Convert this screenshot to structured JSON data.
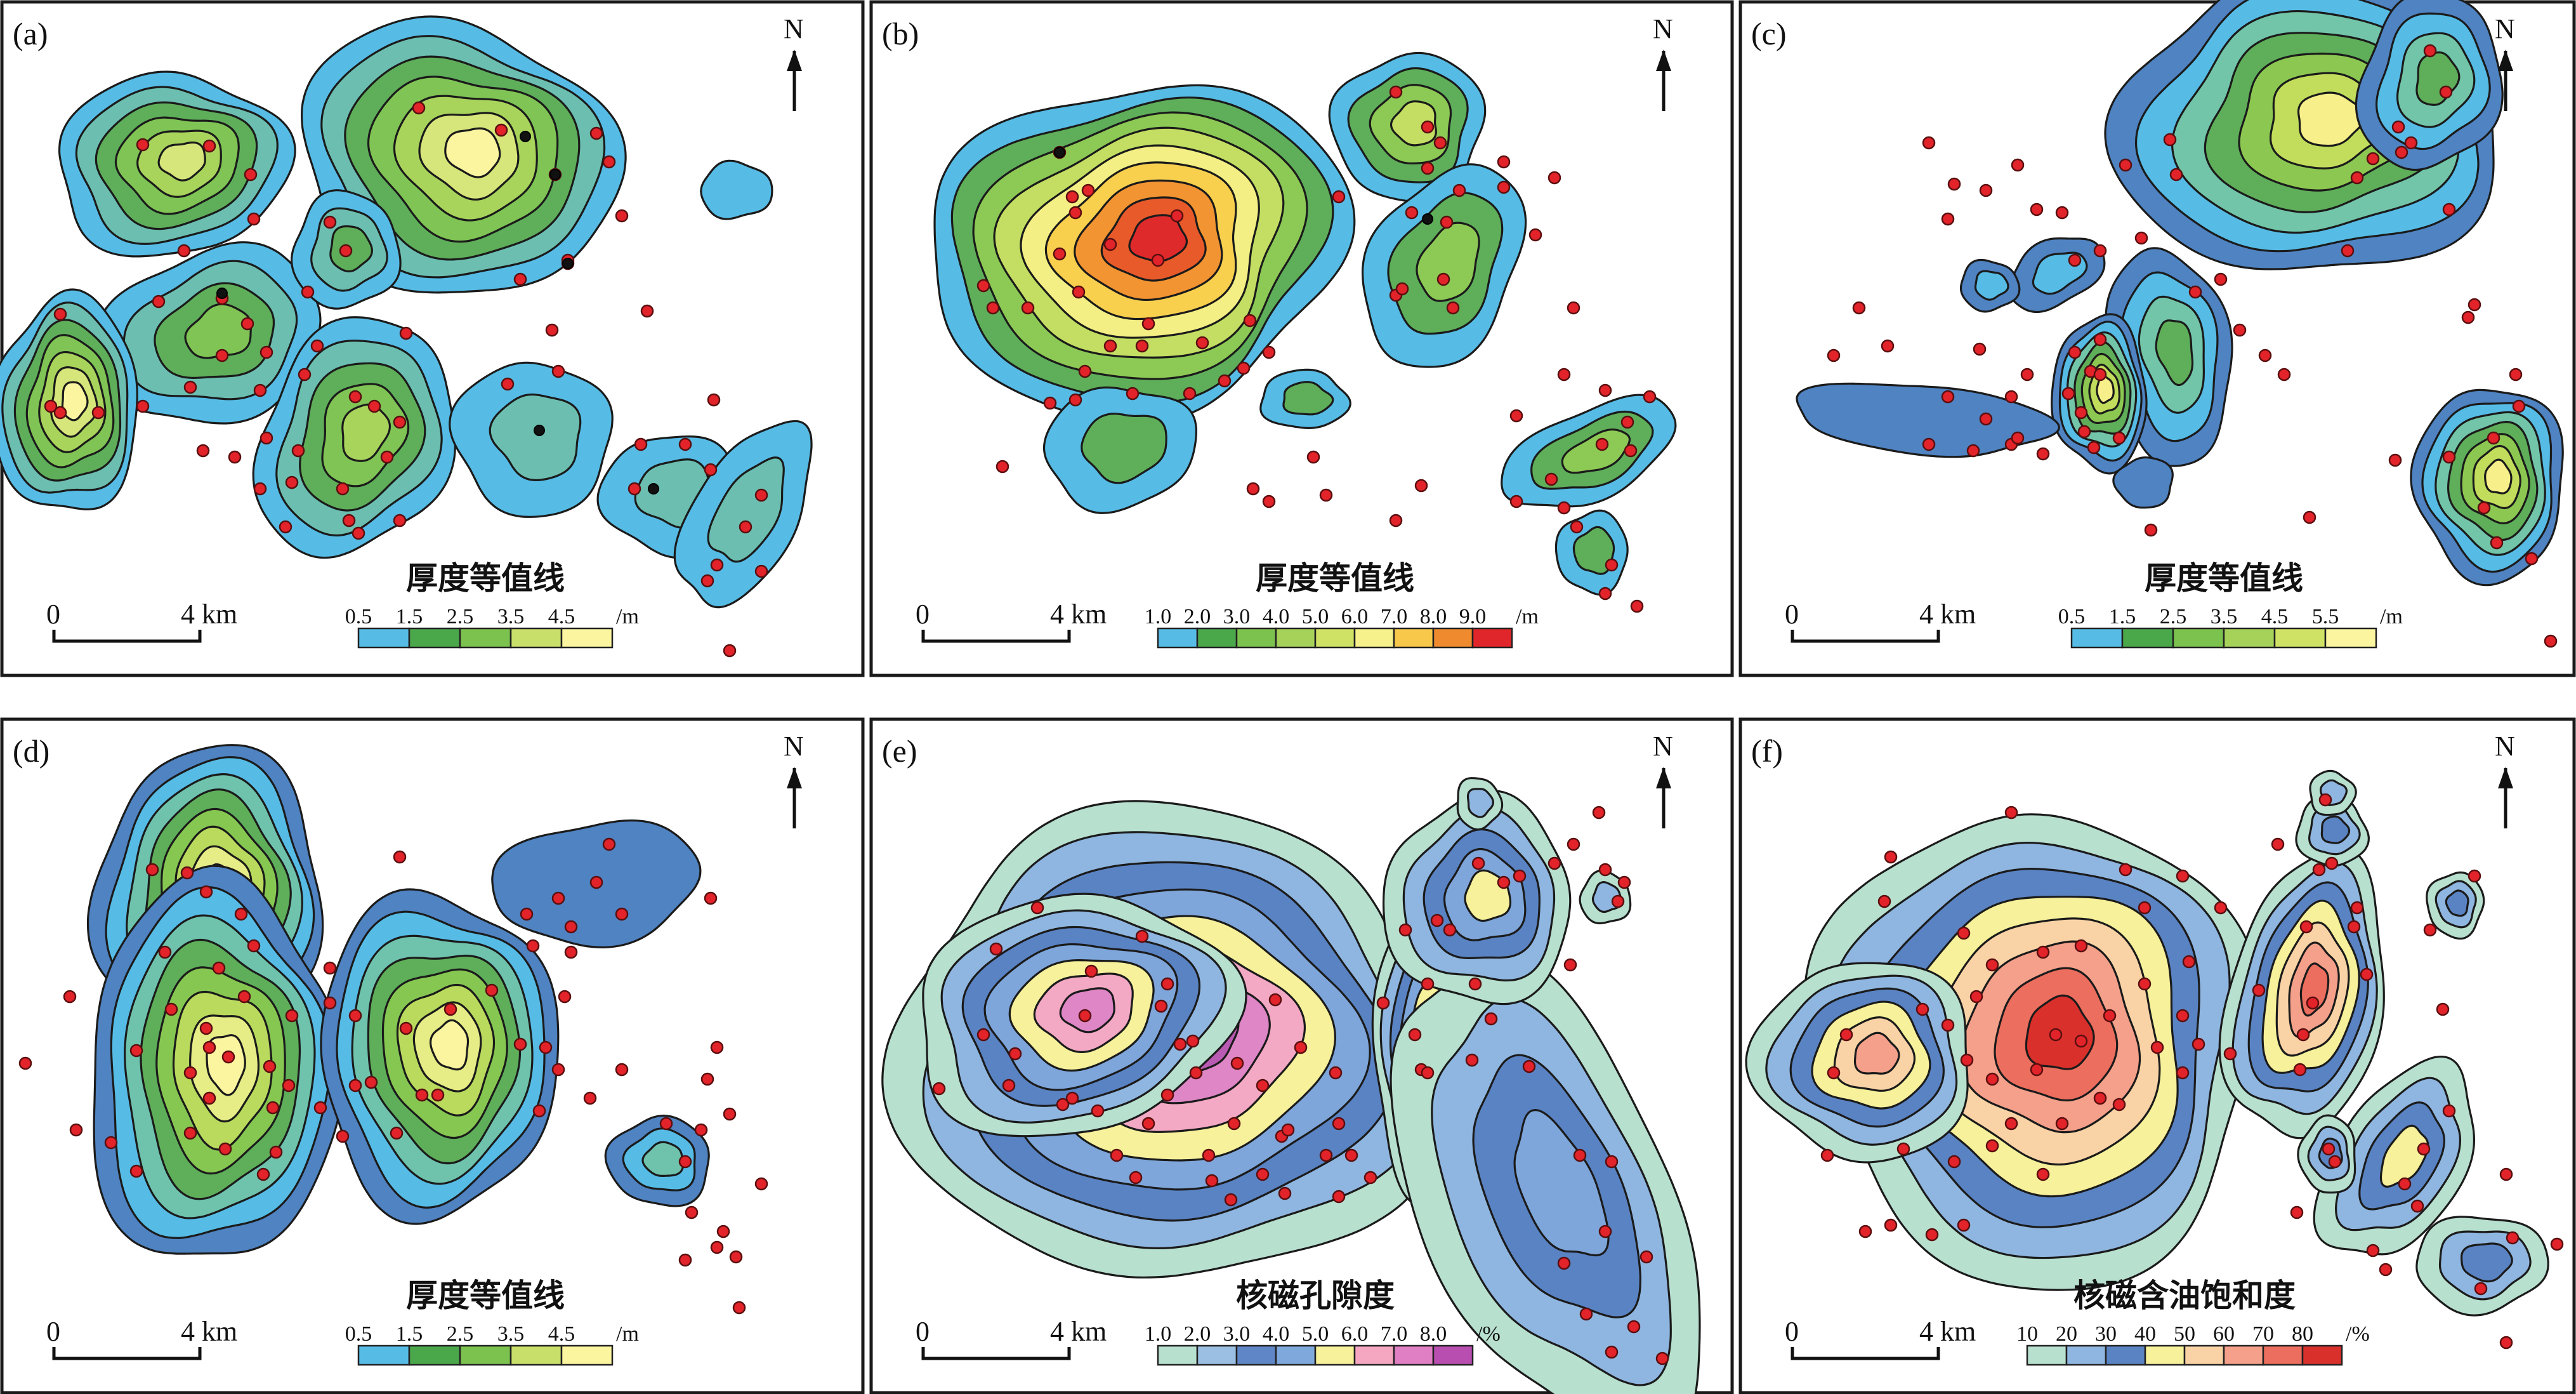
{
  "panels": [
    {
      "id": "a",
      "label": "(a)",
      "north": "N",
      "legend_title": "厚度等值线",
      "legend_ticks": [
        "0.5",
        "1.5",
        "2.5",
        "3.5",
        "4.5"
      ],
      "legend_unit": "/m",
      "legend_colors": [
        "#56bce6",
        "#4aa84a",
        "#7cc24e",
        "#c8df6a",
        "#fbf5a0"
      ],
      "ramp": [
        "#56bce6",
        "#6cbfb0",
        "#5fae5a",
        "#7fc454",
        "#a9d45c",
        "#d7e67a",
        "#fbf5a0"
      ],
      "scale": {
        "zero": "0",
        "distance": "4 km"
      }
    },
    {
      "id": "b",
      "label": "(b)",
      "north": "N",
      "legend_title": "厚度等值线",
      "legend_ticks": [
        "1.0",
        "2.0",
        "3.0",
        "4.0",
        "5.0",
        "6.0",
        "7.0",
        "8.0",
        "9.0"
      ],
      "legend_unit": "/m",
      "legend_colors": [
        "#56bce6",
        "#4aa84a",
        "#7cc24e",
        "#a6d25a",
        "#cfe265",
        "#f6f18a",
        "#f7c84a",
        "#f08a2e",
        "#e0262a"
      ],
      "ramp": [
        "#56bce6",
        "#5fae5a",
        "#8dc955",
        "#c3de62",
        "#f3ef84",
        "#f8d04e",
        "#f29431",
        "#e85a2a",
        "#df2a2c"
      ],
      "scale": {
        "zero": "0",
        "distance": "4 km"
      }
    },
    {
      "id": "c",
      "label": "(c)",
      "north": "N",
      "legend_title": "厚度等值线",
      "legend_ticks": [
        "0.5",
        "1.5",
        "2.5",
        "3.5",
        "4.5",
        "5.5"
      ],
      "legend_unit": "/m",
      "legend_colors": [
        "#56bce6",
        "#4aa84a",
        "#7cc24e",
        "#a6d25a",
        "#cfe265",
        "#fbf5a0"
      ],
      "ramp": [
        "#4f83c2",
        "#56bce6",
        "#72c5a8",
        "#5fae5a",
        "#8cc851",
        "#c2dd5c",
        "#f7f08a"
      ],
      "scale": {
        "zero": "0",
        "distance": "4 km"
      }
    },
    {
      "id": "d",
      "label": "(d)",
      "north": "N",
      "legend_title": "厚度等值线",
      "legend_ticks": [
        "0.5",
        "1.5",
        "2.5",
        "3.5",
        "4.5"
      ],
      "legend_unit": "/m",
      "legend_colors": [
        "#56bce6",
        "#4aa84a",
        "#7cc24e",
        "#c8df6a",
        "#fbf5a0"
      ],
      "ramp": [
        "#4f83c2",
        "#56bce6",
        "#6fc3ad",
        "#5fae5a",
        "#86c752",
        "#b9da5d",
        "#e6ec86",
        "#fbf5a0"
      ],
      "scale": {
        "zero": "0",
        "distance": "4 km"
      }
    },
    {
      "id": "e",
      "label": "(e)",
      "north": "N",
      "legend_title": "核磁孔隙度",
      "legend_ticks": [
        "1.0",
        "2.0",
        "3.0",
        "4.0",
        "5.0",
        "6.0",
        "7.0",
        "8.0"
      ],
      "legend_unit": "/%",
      "legend_colors": [
        "#b8e0cf",
        "#9bbfe3",
        "#5f86c6",
        "#7fa9dc",
        "#f6f19a",
        "#f5a7c2",
        "#e07fc4",
        "#b84fb0"
      ],
      "ramp": [
        "#b8e0cf",
        "#8fb6e0",
        "#5a83c3",
        "#7ea6da",
        "#f6f19a",
        "#f3a9c4",
        "#de86c6",
        "#b95bb2"
      ],
      "scale": {
        "zero": "0",
        "distance": "4 km"
      }
    },
    {
      "id": "f",
      "label": "(f)",
      "north": "N",
      "legend_title": "核磁含油饱和度",
      "legend_ticks": [
        "10",
        "20",
        "30",
        "40",
        "50",
        "60",
        "70",
        "80"
      ],
      "legend_unit": "/%",
      "legend_colors": [
        "#b8e0cf",
        "#8fb6e0",
        "#5a83c3",
        "#f6f19a",
        "#f9d3a6",
        "#f4a08a",
        "#ec6e5e",
        "#d9302c"
      ],
      "ramp": [
        "#b8e0cf",
        "#8fb6e0",
        "#5a83c3",
        "#f6f19a",
        "#f9d3a6",
        "#f4a08a",
        "#ec6e5e",
        "#d9302c"
      ],
      "scale": {
        "zero": "0",
        "distance": "4 km"
      }
    }
  ]
}
